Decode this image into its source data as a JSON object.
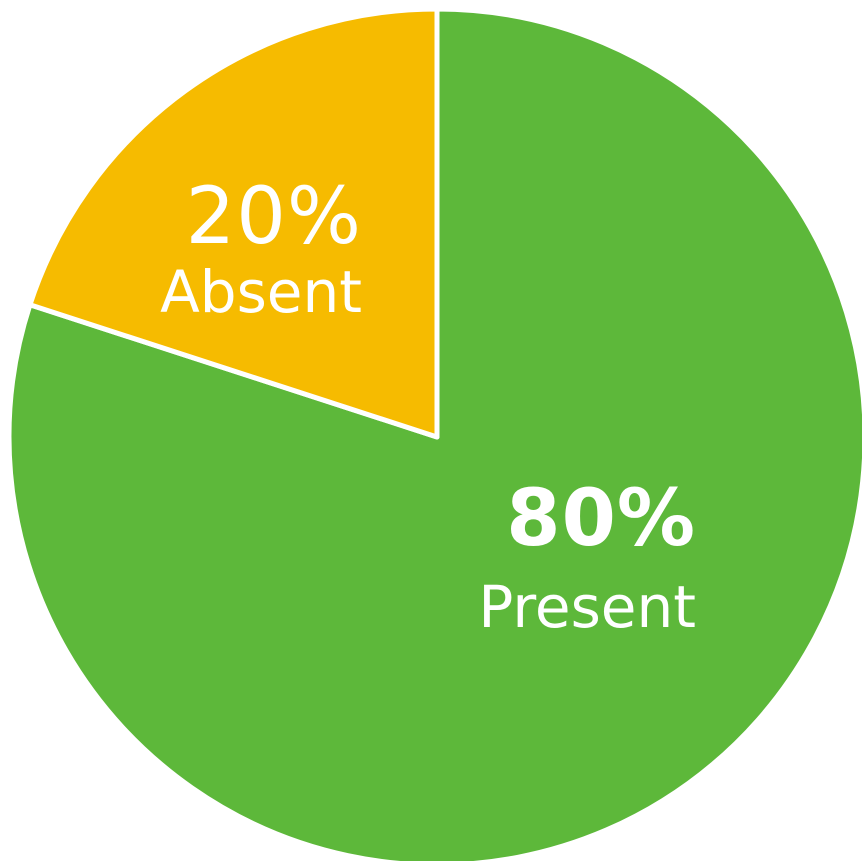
{
  "chart_data": {
    "type": "pie",
    "start_angle_deg": -90,
    "direction": "counterclockwise",
    "slices": [
      {
        "label": "Absent",
        "value": 20,
        "value_label": "20%",
        "color": "#F6BB00"
      },
      {
        "label": "Present",
        "value": 80,
        "value_label": "80%",
        "color": "#5DB83A"
      }
    ],
    "separator_color": "#FFFFFF"
  }
}
